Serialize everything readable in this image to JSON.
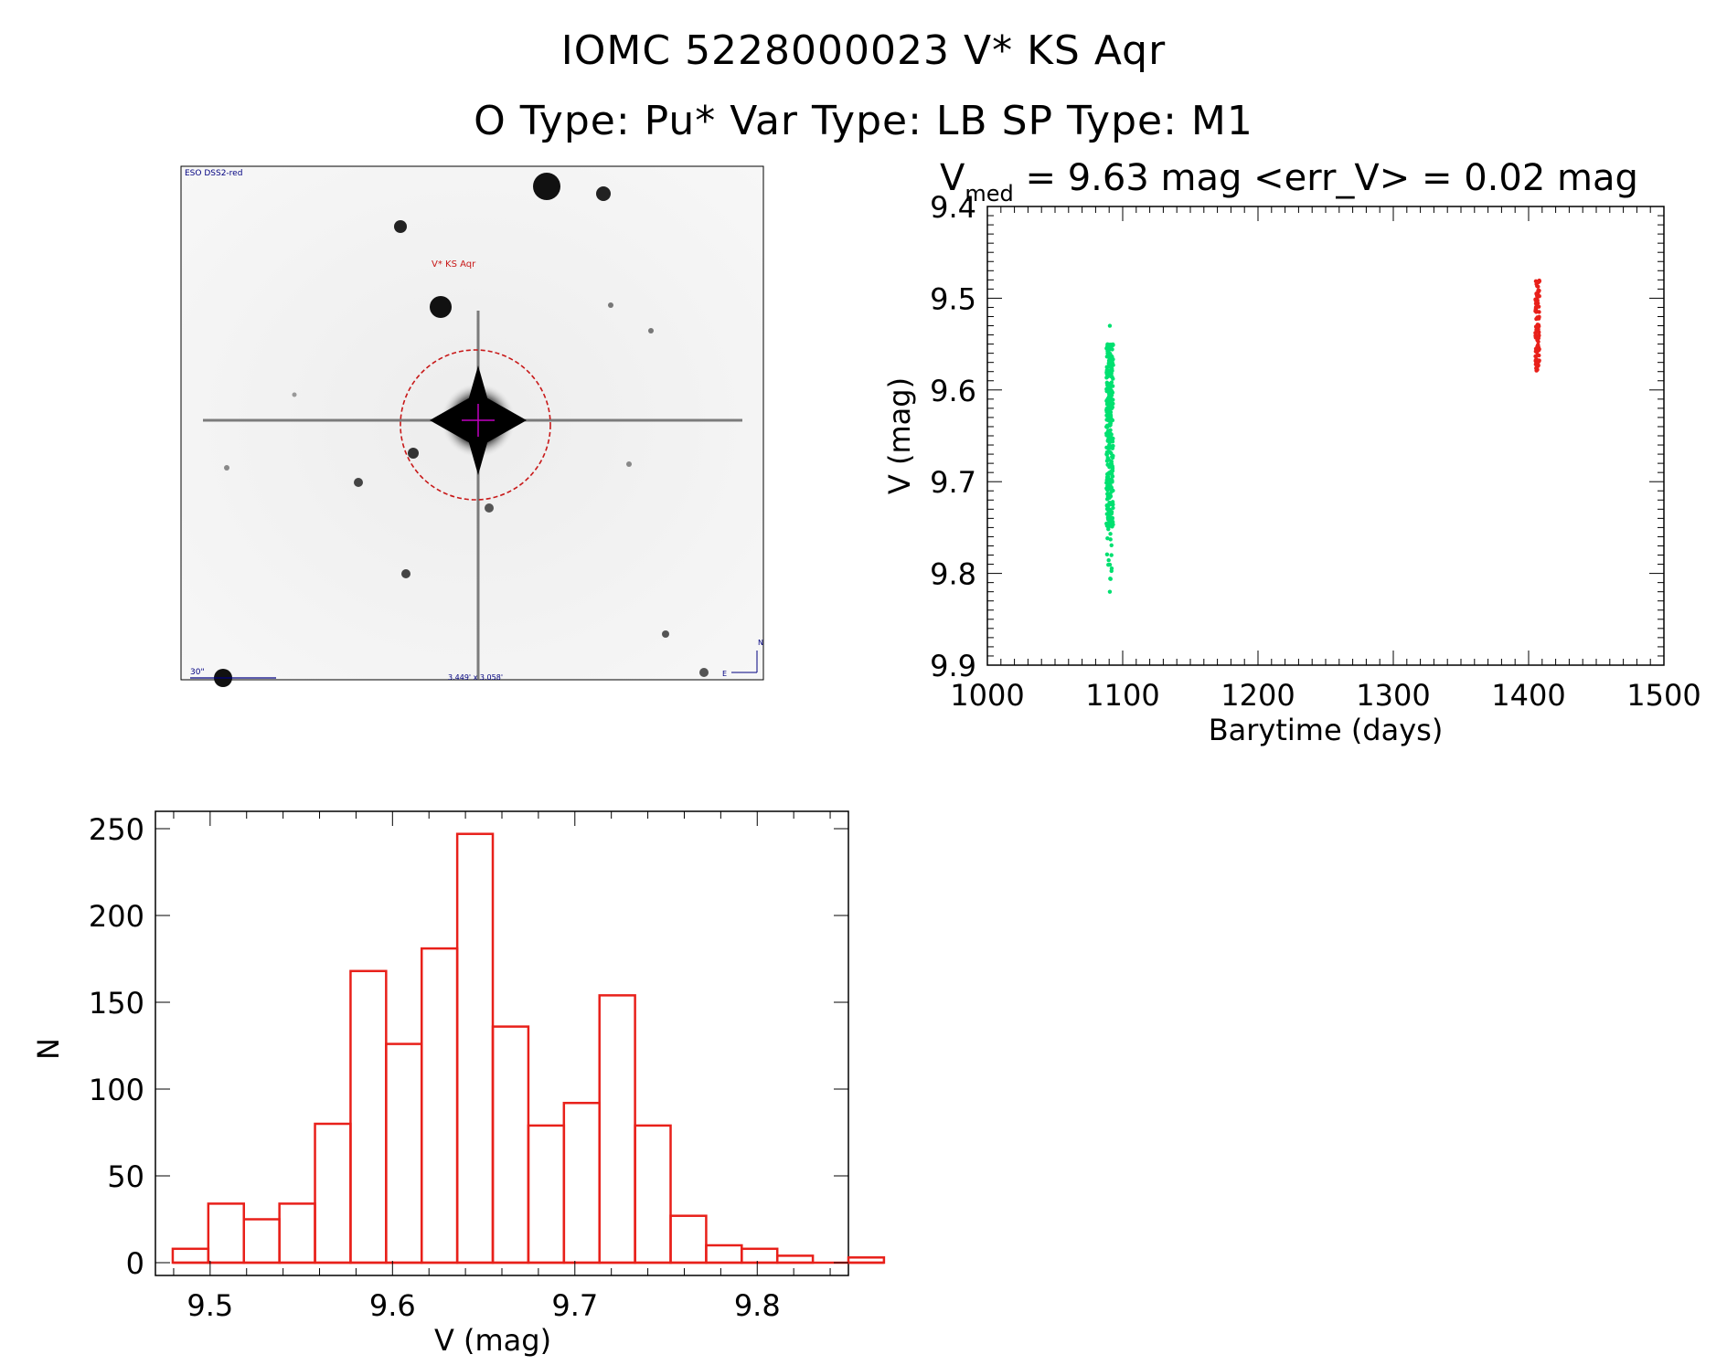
{
  "header": {
    "title_line1": "IOMC 5228000023    V* KS Aqr",
    "title_line2": "O Type: Pu*   Var Type: LB   SP Type: M1"
  },
  "sky_image": {
    "survey_label": "ESO DSS2-red",
    "target_label": "V* KS Aqr",
    "scale_label": "30\"",
    "fov_label": "3.449' x 3.058'",
    "compass_n": "N",
    "compass_e": "E"
  },
  "light_curve": {
    "subtitle_v": "V",
    "subtitle_sub": "med",
    "subtitle_rest": " = 9.63 mag <err_V> = 0.02 mag",
    "chart_data": {
      "type": "scatter",
      "xlabel": "Barytime (days)",
      "ylabel": "V (mag)",
      "xlim": [
        1000,
        1500
      ],
      "ylim": [
        9.9,
        9.4
      ],
      "x_ticks": [
        "1000",
        "1100",
        "1200",
        "1300",
        "1400",
        "1500"
      ],
      "y_ticks": [
        "9.4",
        "9.5",
        "9.6",
        "9.7",
        "9.8",
        "9.9"
      ],
      "series": [
        {
          "color": "#00e070",
          "x_range": [
            1088,
            1093
          ],
          "v_core_range": [
            9.55,
            9.75
          ],
          "v_extremes": [
            9.53,
            9.82
          ]
        },
        {
          "color": "#e8201a",
          "x_range": [
            1405,
            1408
          ],
          "v_core_range": [
            9.48,
            9.58
          ]
        }
      ]
    }
  },
  "histogram": {
    "chart_data": {
      "type": "bar",
      "xlabel": "V (mag)",
      "ylabel": "N",
      "xlim": [
        9.47,
        9.85
      ],
      "ylim": [
        0,
        260
      ],
      "x_ticks": [
        "9.5",
        "9.6",
        "9.7",
        "9.8"
      ],
      "y_ticks": [
        "0",
        "50",
        "100",
        "150",
        "200",
        "250"
      ],
      "bar_color": "#e8201a",
      "bin_width": 0.0195,
      "bins": [
        {
          "left": 9.4795,
          "count": 8
        },
        {
          "left": 9.499,
          "count": 34
        },
        {
          "left": 9.5185,
          "count": 25
        },
        {
          "left": 9.538,
          "count": 34
        },
        {
          "left": 9.5575,
          "count": 80
        },
        {
          "left": 9.577,
          "count": 168
        },
        {
          "left": 9.5965,
          "count": 126
        },
        {
          "left": 9.616,
          "count": 181
        },
        {
          "left": 9.6355,
          "count": 247
        },
        {
          "left": 9.655,
          "count": 136
        },
        {
          "left": 9.6745,
          "count": 79
        },
        {
          "left": 9.694,
          "count": 92
        },
        {
          "left": 9.7135,
          "count": 154
        },
        {
          "left": 9.733,
          "count": 79
        },
        {
          "left": 9.7525,
          "count": 27
        },
        {
          "left": 9.772,
          "count": 10
        },
        {
          "left": 9.7915,
          "count": 8
        },
        {
          "left": 9.811,
          "count": 4
        },
        {
          "left": 9.8305,
          "count": 0
        },
        {
          "left": 9.85,
          "count": 3
        }
      ]
    }
  }
}
